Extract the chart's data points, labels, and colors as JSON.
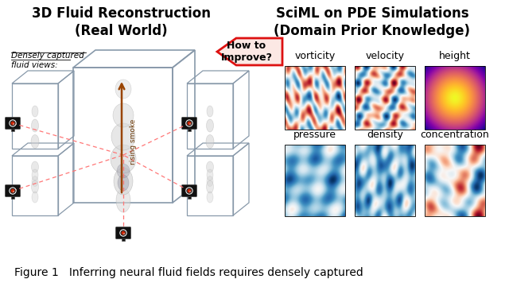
{
  "title_left": "3D Fluid Reconstruction\n(Real World)",
  "title_right": "SciML on PDE Simulations\n(Domain Prior Knowledge)",
  "caption": "Figure 1   Inferring neural fluid fields requires densely captured",
  "arrow_label": "How to\nImprove?",
  "densely_label": "Densely captured\nfluid views:",
  "rising_label": "rising smoke",
  "field_labels_top": [
    "vorticity",
    "velocity",
    "height"
  ],
  "field_labels_bot": [
    "pressure",
    "density",
    "concentration"
  ],
  "bg_color": "#ffffff",
  "arrow_fill": "#fce8e4",
  "arrow_edge": "#dd1111",
  "camera_color": "#111111",
  "dashed_line_color": "#ff7777",
  "box_color": "#8899aa",
  "title_fontsize": 12,
  "label_fontsize": 9,
  "caption_fontsize": 10
}
